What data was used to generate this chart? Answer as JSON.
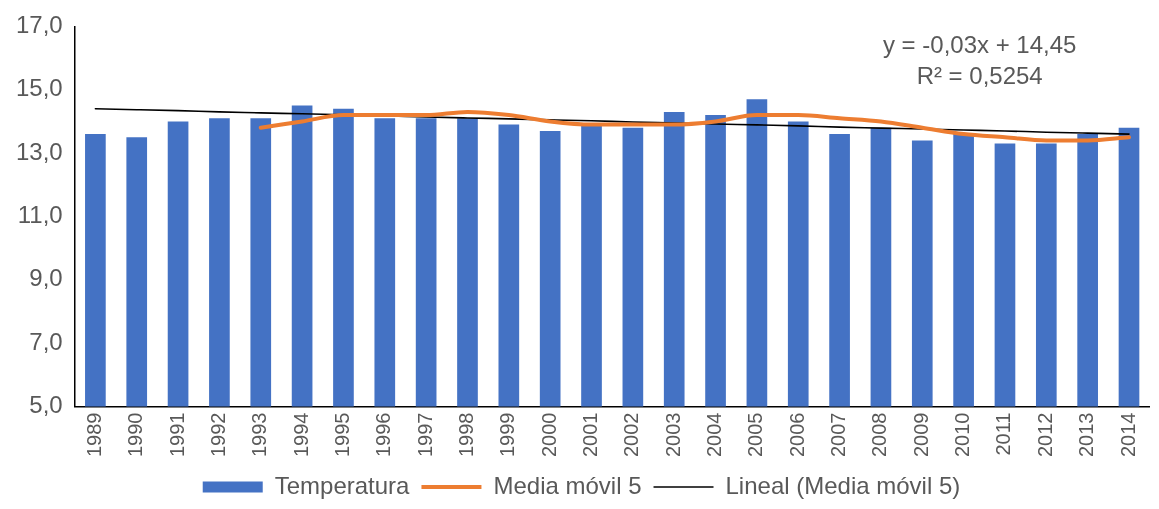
{
  "chart_data": {
    "type": "bar",
    "categories": [
      "1989",
      "1990",
      "1991",
      "1992",
      "1993",
      "1994",
      "1995",
      "1996",
      "1997",
      "1998",
      "1999",
      "2000",
      "2001",
      "2002",
      "2003",
      "2004",
      "2005",
      "2006",
      "2007",
      "2008",
      "2009",
      "2010",
      "2011",
      "2012",
      "2013",
      "2014"
    ],
    "series": [
      {
        "name": "Temperatura",
        "color": "#4472c4",
        "values": [
          13.6,
          13.5,
          14.0,
          14.1,
          14.1,
          14.5,
          14.4,
          14.1,
          14.1,
          14.1,
          13.9,
          13.7,
          13.9,
          13.8,
          14.3,
          14.2,
          14.7,
          14.0,
          13.6,
          13.8,
          13.4,
          13.6,
          13.3,
          13.3,
          13.6,
          13.8
        ]
      },
      {
        "name": "Media móvil 5",
        "type": "line",
        "color": "#ed7d31",
        "values": [
          null,
          null,
          null,
          null,
          13.8,
          14.0,
          14.2,
          14.2,
          14.2,
          14.3,
          14.2,
          14.0,
          13.9,
          13.9,
          13.9,
          14.0,
          14.2,
          14.2,
          14.1,
          14.0,
          13.8,
          13.6,
          13.5,
          13.4,
          13.4,
          13.5
        ]
      },
      {
        "name": "Lineal (Media móvil 5)",
        "type": "line",
        "color": "#000000",
        "values": [
          14.4,
          14.37,
          14.34,
          14.3,
          14.27,
          14.24,
          14.21,
          14.18,
          14.14,
          14.11,
          14.08,
          14.05,
          14.02,
          13.98,
          13.95,
          13.92,
          13.89,
          13.86,
          13.82,
          13.79,
          13.76,
          13.73,
          13.7,
          13.66,
          13.63,
          13.6
        ]
      }
    ],
    "ylim": [
      5,
      17
    ],
    "yticks": [
      {
        "value": 5,
        "label": "5,0"
      },
      {
        "value": 7,
        "label": "7,0"
      },
      {
        "value": 9,
        "label": "9,0"
      },
      {
        "value": 11,
        "label": "11,0"
      },
      {
        "value": 13,
        "label": "13,0"
      },
      {
        "value": 15,
        "label": "15,0"
      },
      {
        "value": 17,
        "label": "17,0"
      }
    ],
    "grid": false,
    "legend": "bottom",
    "marker": "none",
    "annotations": [
      "y = -0,03x + 14,45",
      "R² = 0,5254"
    ]
  }
}
